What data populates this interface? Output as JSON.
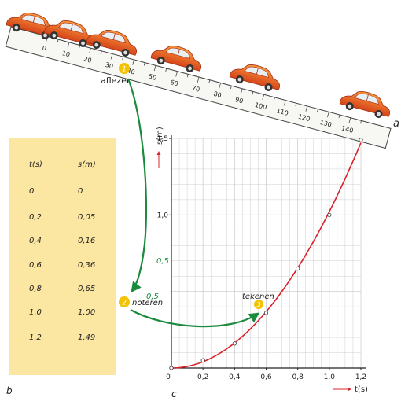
{
  "ruler": {
    "ticks": [
      "0",
      "10",
      "20",
      "30",
      "40",
      "50",
      "60",
      "70",
      "80",
      "90",
      "100",
      "110",
      "120",
      "130",
      "140"
    ],
    "letter": "a"
  },
  "steps": {
    "read": {
      "number": "1",
      "label": "aflezen"
    },
    "note": {
      "number": "2",
      "label": "noteren"
    },
    "draw": {
      "number": "3",
      "label": "tekenen"
    }
  },
  "table": {
    "header_t": "t(s)",
    "header_s": "s(m)",
    "rows": [
      {
        "t": "0",
        "s": "0"
      },
      {
        "t": "0,2",
        "s": "0,05"
      },
      {
        "t": "0,4",
        "s": "0,16"
      },
      {
        "t": "0,6",
        "s": "0,36"
      },
      {
        "t": "0,8",
        "s": "0,65"
      },
      {
        "t": "1,0",
        "s": "1,00"
      },
      {
        "t": "1,2",
        "s": "1,49"
      }
    ],
    "letter": "b"
  },
  "chart_data": {
    "type": "line",
    "xlabel": "t(s)",
    "ylabel": "s(m)",
    "x_ticks": [
      "0",
      "0,2",
      "0,4",
      "0,6",
      "0,8",
      "1,0",
      "1,2"
    ],
    "y_ticks": [
      "1,0",
      "1,5"
    ],
    "y_ticks_pencil": [
      "0,5",
      "0,5"
    ],
    "xlim": [
      0,
      1.2
    ],
    "ylim": [
      0,
      1.5
    ],
    "grid": true,
    "series": [
      {
        "x": [
          0,
          0.2,
          0.4,
          0.6,
          0.8,
          1.0,
          1.2
        ],
        "y": [
          0,
          0.05,
          0.16,
          0.36,
          0.65,
          1.0,
          1.49
        ]
      }
    ],
    "letter": "c",
    "colors": {
      "curve": "#d8232a",
      "grid": "#cfcfcf",
      "arrow": "#1a8a3c",
      "badge": "#f3c200"
    }
  }
}
